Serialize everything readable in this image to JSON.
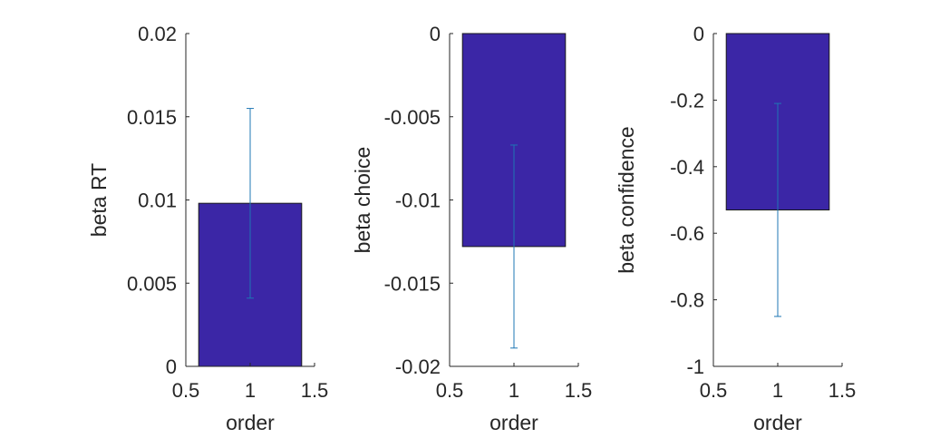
{
  "chart_data": [
    {
      "type": "bar",
      "x": [
        1
      ],
      "values": [
        0.0098
      ],
      "error": [
        0.0057
      ],
      "xlabel": "order",
      "ylabel": "beta RT",
      "xlim": [
        0.5,
        1.5
      ],
      "ylim": [
        0,
        0.02
      ],
      "xticks": [
        "0.5",
        "1",
        "1.5"
      ],
      "yticks": [
        "0",
        "0.005",
        "0.01",
        "0.015",
        "0.02"
      ],
      "grid": false
    },
    {
      "type": "bar",
      "x": [
        1
      ],
      "values": [
        -0.0128
      ],
      "error": [
        0.0061
      ],
      "xlabel": "order",
      "ylabel": "beta choice",
      "xlim": [
        0.5,
        1.5
      ],
      "ylim": [
        -0.02,
        0
      ],
      "xticks": [
        "0.5",
        "1",
        "1.5"
      ],
      "yticks": [
        "-0.02",
        "-0.015",
        "-0.01",
        "-0.005",
        "0"
      ],
      "grid": false
    },
    {
      "type": "bar",
      "x": [
        1
      ],
      "values": [
        -0.53
      ],
      "error": [
        0.32
      ],
      "xlabel": "order",
      "ylabel": "beta confidence",
      "xlim": [
        0.5,
        1.5
      ],
      "ylim": [
        -1,
        0
      ],
      "xticks": [
        "0.5",
        "1",
        "1.5"
      ],
      "yticks": [
        "-1",
        "-0.8",
        "-0.6",
        "-0.4",
        "-0.2",
        "0"
      ],
      "grid": false
    }
  ],
  "colors": {
    "bar_fill": "#3b26a6",
    "bar_edge": "#1a1a1a",
    "errorbar": "#1f77b4",
    "axis": "#262626"
  }
}
